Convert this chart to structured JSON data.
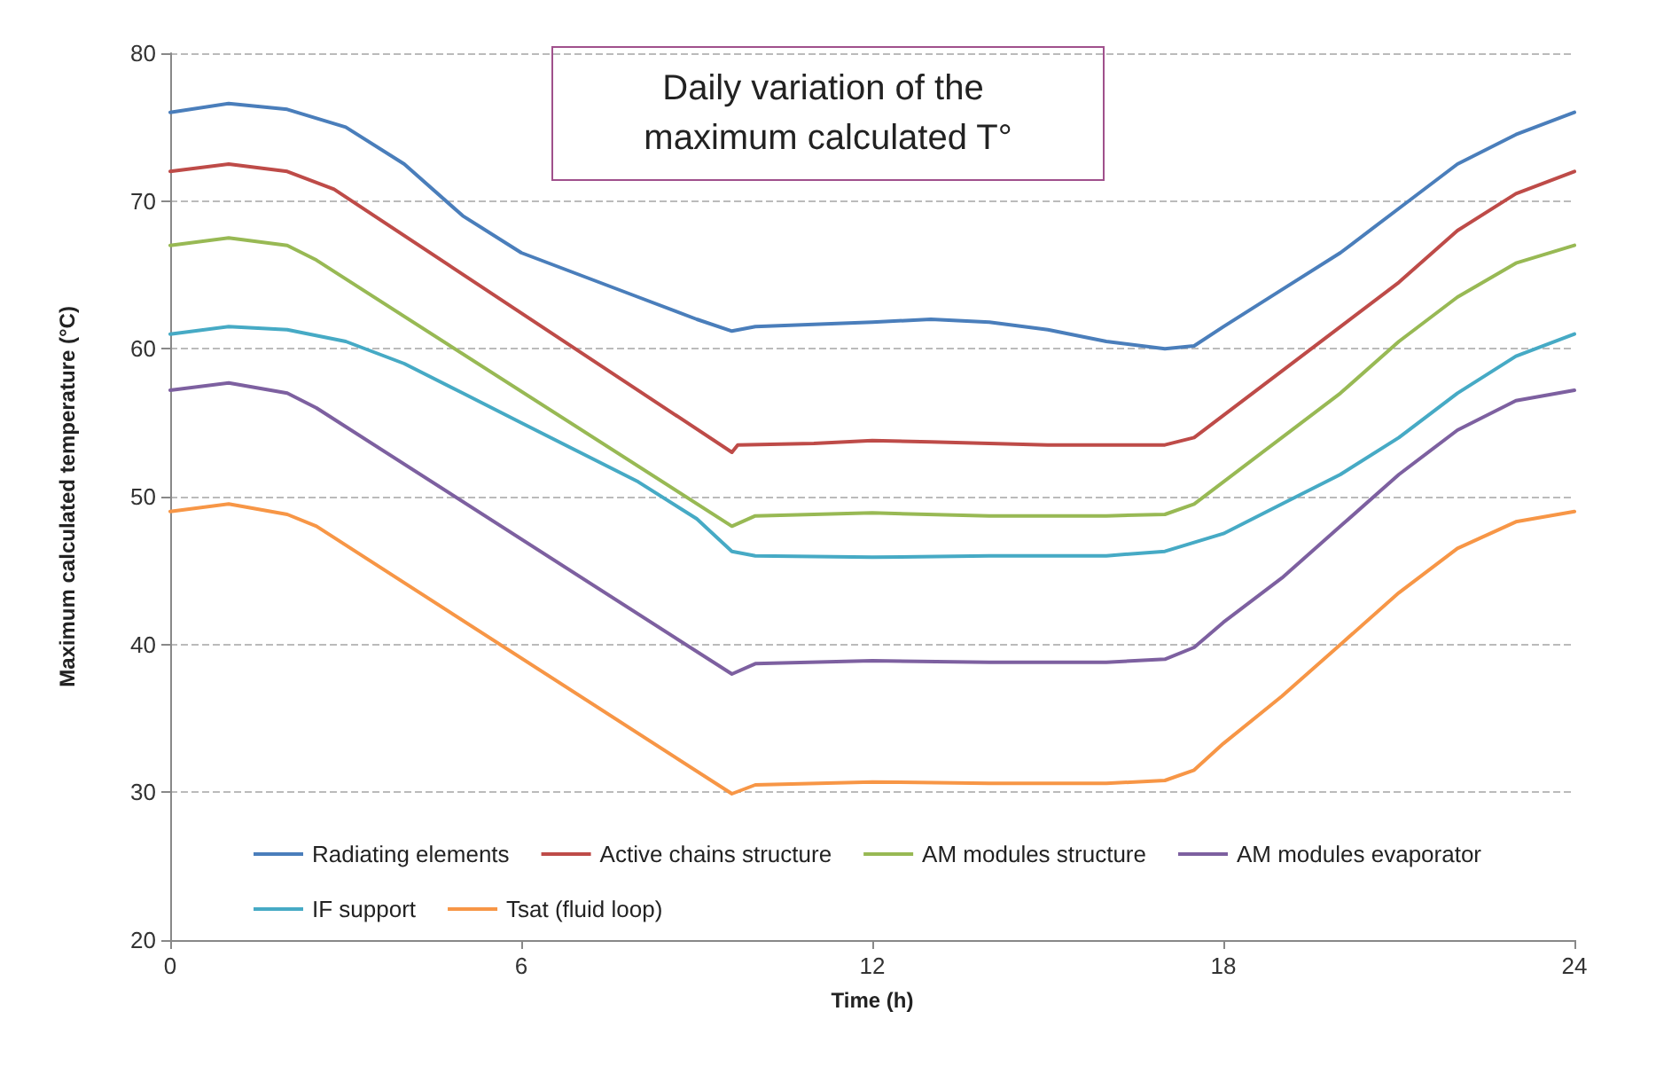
{
  "chart_data": {
    "type": "line",
    "title": "Daily variation of the maximum calculated T°",
    "xlabel": "Time (h)",
    "ylabel": "Maximum calculated temperature (°C)",
    "xlim": [
      0,
      24
    ],
    "xticks": [
      0,
      6,
      12,
      18,
      24
    ],
    "ylim": [
      20,
      80
    ],
    "yticks": [
      20,
      30,
      40,
      50,
      60,
      70,
      80
    ],
    "grid": "y",
    "legend": "bottom",
    "marker": "none",
    "line_style": "solid",
    "series": [
      {
        "name": "Radiating elements",
        "color": "#4a7ebb",
        "x": [
          0,
          1,
          2,
          3,
          4,
          5,
          6,
          7,
          8,
          9,
          9.6,
          10,
          12,
          13,
          14,
          15,
          16,
          17,
          17.5,
          18,
          19,
          20,
          21,
          22,
          23,
          24
        ],
        "values": [
          76,
          76.6,
          76.2,
          75,
          72.5,
          69,
          66.5,
          65,
          63.5,
          62,
          61.2,
          61.5,
          61.8,
          62,
          61.8,
          61.3,
          60.5,
          60,
          60.2,
          61.5,
          64,
          66.5,
          69.5,
          72.5,
          74.5,
          76
        ]
      },
      {
        "name": "Active chains structure",
        "color": "#be4b48",
        "x": [
          0,
          1,
          2,
          2.8,
          9.6,
          9.7,
          11,
          12,
          13,
          14,
          15,
          16,
          17,
          17.5,
          18,
          19,
          20,
          21,
          22,
          23,
          24
        ],
        "values": [
          72,
          72.5,
          72,
          70.8,
          53,
          53.5,
          53.6,
          53.8,
          53.7,
          53.6,
          53.5,
          53.5,
          53.5,
          54,
          55.5,
          58.5,
          61.5,
          64.5,
          68,
          70.5,
          72
        ]
      },
      {
        "name": "AM modules structure",
        "color": "#98b954",
        "x": [
          0,
          1,
          2,
          2.5,
          9.6,
          10,
          12,
          14,
          16,
          17,
          17.5,
          18,
          19,
          20,
          21,
          22,
          23,
          24
        ],
        "values": [
          67,
          67.5,
          67,
          66,
          48,
          48.7,
          48.9,
          48.7,
          48.7,
          48.8,
          49.5,
          51,
          54,
          57,
          60.5,
          63.5,
          65.8,
          67
        ]
      },
      {
        "name": "AM modules evaporator",
        "color": "#7d60a0",
        "x": [
          0,
          1,
          2,
          2.5,
          9.6,
          10,
          12,
          14,
          16,
          17,
          17.5,
          18,
          19,
          20,
          21,
          22,
          23,
          24
        ],
        "values": [
          57.2,
          57.7,
          57,
          56,
          38,
          38.7,
          38.9,
          38.8,
          38.8,
          39,
          39.8,
          41.5,
          44.5,
          48,
          51.5,
          54.5,
          56.5,
          57.2
        ]
      },
      {
        "name": "IF support",
        "color": "#46aac5",
        "x": [
          0,
          1,
          2,
          3,
          4,
          5,
          6,
          7,
          8,
          9,
          9.6,
          10,
          12,
          14,
          16,
          17,
          18,
          19,
          20,
          21,
          22,
          23,
          24
        ],
        "values": [
          61,
          61.5,
          61.3,
          60.5,
          59,
          57,
          55,
          53,
          51,
          48.5,
          46.3,
          46,
          45.9,
          46,
          46,
          46.3,
          47.5,
          49.5,
          51.5,
          54,
          57,
          59.5,
          61
        ]
      },
      {
        "name": "Tsat (fluid loop)",
        "color": "#f79646",
        "x": [
          0,
          1,
          2,
          2.5,
          9.6,
          10,
          12,
          14,
          16,
          17,
          17.5,
          18,
          19,
          20,
          21,
          22,
          23,
          24
        ],
        "values": [
          49,
          49.5,
          48.8,
          48,
          29.9,
          30.5,
          30.7,
          30.6,
          30.6,
          30.8,
          31.5,
          33.3,
          36.5,
          40,
          43.5,
          46.5,
          48.3,
          49
        ]
      }
    ]
  }
}
